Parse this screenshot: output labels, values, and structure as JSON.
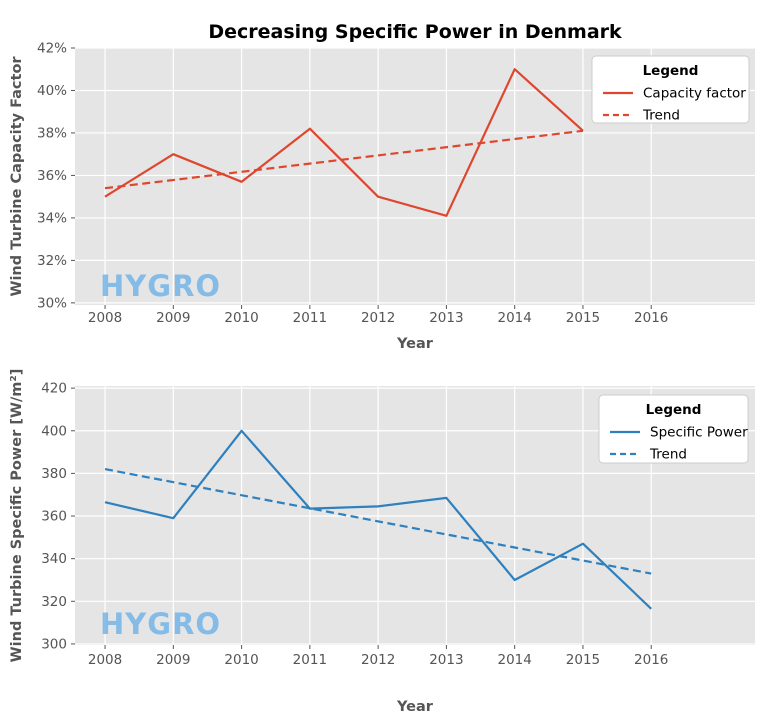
{
  "watermark_text": "HYGRO",
  "colors": {
    "red": "#DE472F",
    "blue": "#2E80BE",
    "plot_bg": "#E5E5E5",
    "grid": "#FFFFFF",
    "tick": "#555555",
    "axis_label": "#555555",
    "title": "#000000",
    "watermark": "#6DB1E8",
    "legend_bg": "#FFFFFF",
    "legend_border": "#CCCCCC"
  },
  "chart_data": [
    {
      "type": "line",
      "title": "Decreasing Specific Power in Denmark",
      "xlabel": "Year",
      "ylabel": "Wind Turbine Capacity Factor",
      "xlim": [
        2007.56,
        2017.52
      ],
      "ylim": [
        29.9,
        42
      ],
      "grid": true,
      "legend": {
        "title": "Legend",
        "position": "upper right"
      },
      "xticks": {
        "values": [
          2008,
          2009,
          2010,
          2011,
          2012,
          2013,
          2014,
          2015,
          2016
        ],
        "labels": [
          "2008",
          "2009",
          "2010",
          "2011",
          "2012",
          "2013",
          "2014",
          "2015",
          "2016"
        ]
      },
      "yticks": {
        "values": [
          30,
          32,
          34,
          36,
          38,
          40,
          42
        ],
        "labels": [
          "30%",
          "32%",
          "34%",
          "36%",
          "38%",
          "40%",
          "42%"
        ]
      },
      "series": [
        {
          "name": "Capacity factor",
          "style": "solid",
          "color": "#DE472F",
          "x": [
            2008,
            2009,
            2010,
            2011,
            2012,
            2013,
            2014,
            2015
          ],
          "values": [
            35.0,
            37.0,
            35.7,
            38.2,
            35.0,
            34.1,
            41.0,
            38.1
          ]
        },
        {
          "name": "Trend",
          "style": "dashed",
          "color": "#DE472F",
          "x": [
            2008,
            2015
          ],
          "values": [
            35.4,
            38.1
          ]
        }
      ]
    },
    {
      "type": "line",
      "title": "",
      "xlabel": "Year",
      "ylabel": "Wind Turbine Specific Power [W/m²]",
      "xlim": [
        2007.56,
        2017.52
      ],
      "ylim": [
        299.5,
        421
      ],
      "grid": true,
      "legend": {
        "title": "Legend",
        "position": "upper right"
      },
      "xticks": {
        "values": [
          2008,
          2009,
          2010,
          2011,
          2012,
          2013,
          2014,
          2015,
          2016
        ],
        "labels": [
          "2008",
          "2009",
          "2010",
          "2011",
          "2012",
          "2013",
          "2014",
          "2015",
          "2016"
        ]
      },
      "yticks": {
        "values": [
          300,
          320,
          340,
          360,
          380,
          400,
          420
        ],
        "labels": [
          "300",
          "320",
          "340",
          "360",
          "380",
          "400",
          "420"
        ]
      },
      "series": [
        {
          "name": "Specific Power",
          "style": "solid",
          "color": "#2E80BE",
          "x": [
            2008,
            2009,
            2010,
            2011,
            2012,
            2013,
            2014,
            2015,
            2016
          ],
          "values": [
            366.5,
            359,
            400,
            363.5,
            364.5,
            368.5,
            330,
            347,
            316.5
          ]
        },
        {
          "name": "Trend",
          "style": "dashed",
          "color": "#2E80BE",
          "x": [
            2008,
            2016
          ],
          "values": [
            382,
            333
          ]
        }
      ]
    }
  ]
}
